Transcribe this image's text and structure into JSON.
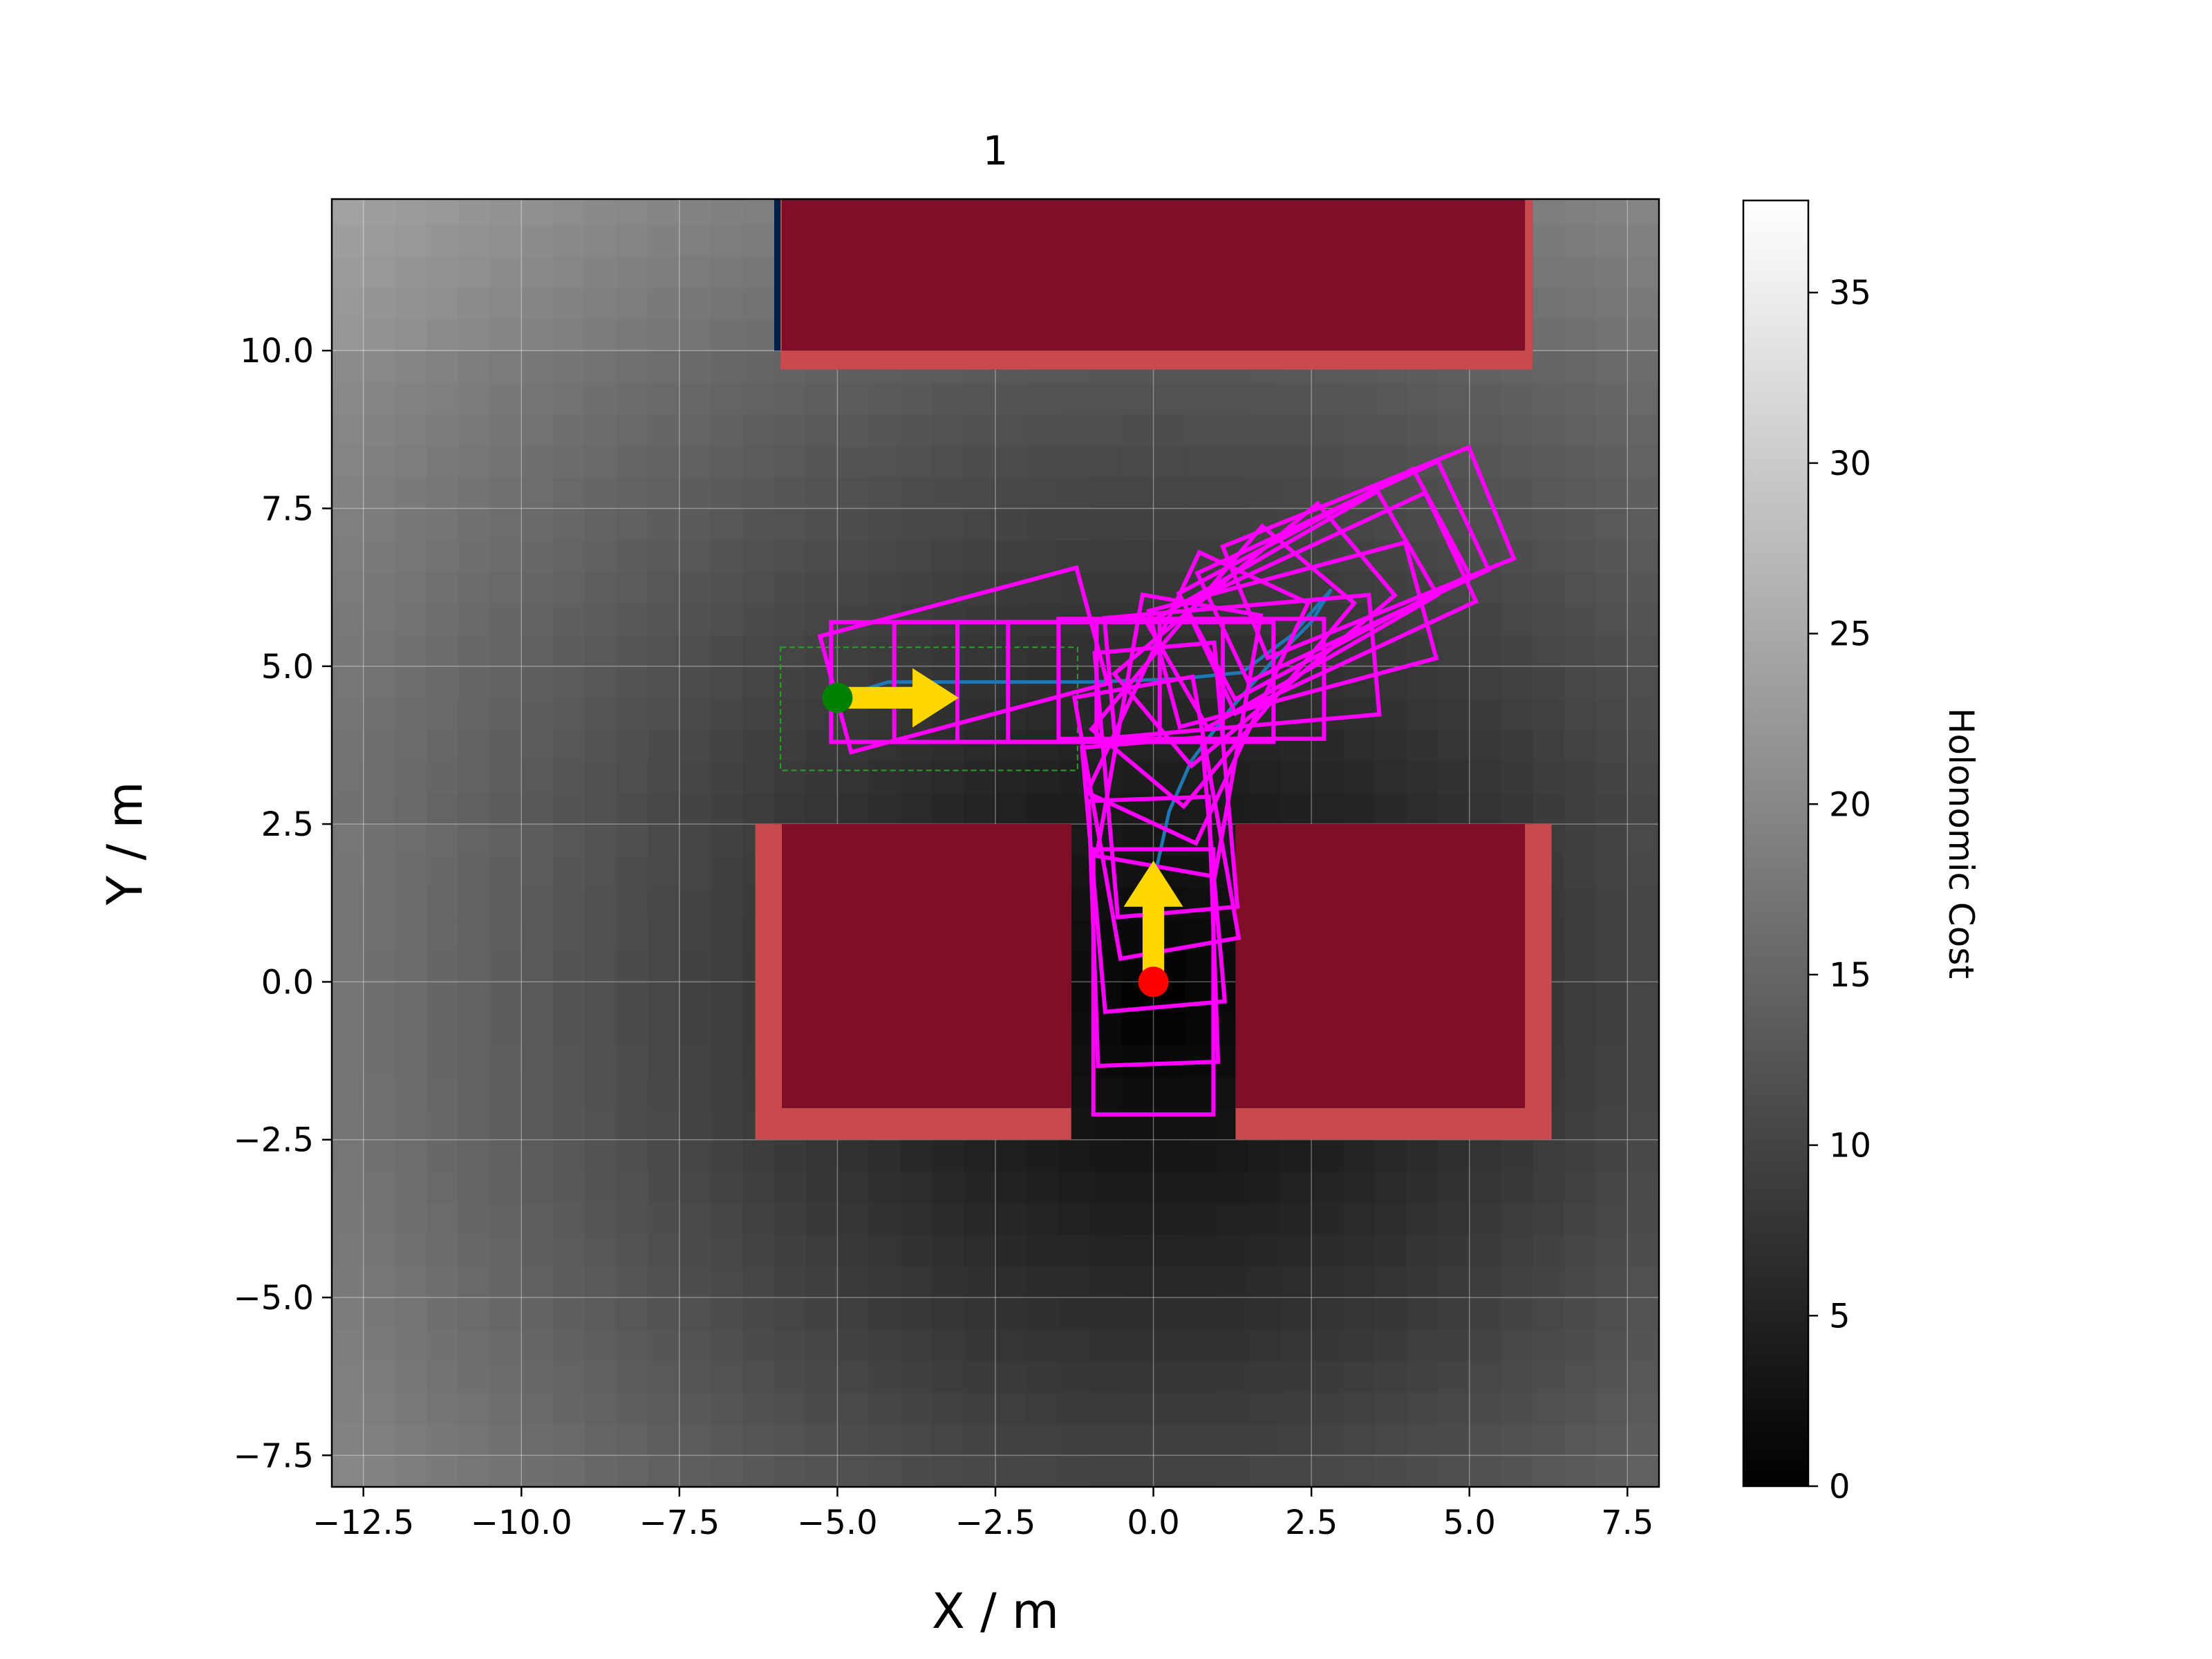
{
  "chart_data": {
    "type": "heatmap",
    "title": "1",
    "xlabel": "X / m",
    "ylabel": "Y / m",
    "xlim": [
      -13,
      8
    ],
    "ylim": [
      -8,
      12.4
    ],
    "xticks": [
      -12.5,
      -10.0,
      -7.5,
      -5.0,
      -2.5,
      0.0,
      2.5,
      5.0,
      7.5
    ],
    "yticks": [
      -7.5,
      -5.0,
      -2.5,
      0.0,
      2.5,
      5.0,
      7.5,
      10.0
    ],
    "xtick_labels": [
      "−12.5",
      "−10.0",
      "−7.5",
      "−5.0",
      "−2.5",
      "0.0",
      "2.5",
      "5.0",
      "7.5"
    ],
    "ytick_labels": [
      "−7.5",
      "−5.0",
      "−2.5",
      "0.0",
      "2.5",
      "5.0",
      "7.5",
      "10.0"
    ],
    "grid": true,
    "colorbar": {
      "label": "Holonomic Cost",
      "range": [
        0,
        37.7
      ],
      "ticks": [
        0,
        5,
        10,
        15,
        20,
        25,
        30,
        35
      ],
      "tick_labels": [
        "0",
        "5",
        "10",
        "15",
        "20",
        "25",
        "30",
        "35"
      ],
      "colormap": "gray"
    },
    "heatmap_source": [
      0.1,
      -0.3
    ],
    "heatmap_cell": 0.5,
    "obstacles": [
      {
        "x": [
          -6.0,
          6.0
        ],
        "y": [
          10.0,
          12.4
        ]
      },
      {
        "x": [
          -6.0,
          -1.3
        ],
        "y": [
          -2.0,
          2.5
        ]
      },
      {
        "x": [
          1.3,
          6.0
        ],
        "y": [
          -2.0,
          2.5
        ]
      }
    ],
    "inflated_obstacles": [
      {
        "x": [
          -5.9,
          6.0
        ],
        "y": [
          9.7,
          12.4
        ]
      },
      {
        "x": [
          -6.3,
          -1.3
        ],
        "y": [
          -2.5,
          2.5
        ]
      },
      {
        "x": [
          1.3,
          6.3
        ],
        "y": [
          -2.5,
          2.5
        ]
      }
    ],
    "goal_region": {
      "x": [
        -5.9,
        -1.2
      ],
      "y": [
        3.35,
        5.3
      ]
    },
    "start": {
      "x": 0.0,
      "y": 0.0,
      "heading_deg": 90
    },
    "goal": {
      "x": -5.0,
      "y": 4.5,
      "heading_deg": 0
    },
    "path": [
      [
        0.0,
        0.0
      ],
      [
        0.0,
        1.0
      ],
      [
        0.05,
        1.8
      ],
      [
        0.25,
        2.7
      ],
      [
        0.6,
        3.5
      ],
      [
        1.2,
        4.3
      ],
      [
        1.9,
        5.1
      ],
      [
        2.5,
        5.7
      ],
      [
        2.8,
        6.2
      ],
      [
        2.2,
        5.5
      ],
      [
        1.4,
        4.9
      ],
      [
        0.4,
        4.8
      ],
      [
        -1.0,
        4.75
      ],
      [
        -2.5,
        4.75
      ],
      [
        -4.2,
        4.75
      ],
      [
        -5.0,
        4.5
      ]
    ],
    "vehicle_poses": [
      {
        "x": 0.0,
        "y": 0.0,
        "theta_deg": 90
      },
      {
        "x": 0.0,
        "y": 0.8,
        "theta_deg": 92
      },
      {
        "x": 0.0,
        "y": 1.7,
        "theta_deg": 95
      },
      {
        "x": 0.05,
        "y": 2.6,
        "theta_deg": 100
      },
      {
        "x": 0.2,
        "y": 3.2,
        "theta_deg": 95
      },
      {
        "x": 0.4,
        "y": 3.9,
        "theta_deg": 80
      },
      {
        "x": 0.7,
        "y": 4.5,
        "theta_deg": 65
      },
      {
        "x": 1.1,
        "y": 5.0,
        "theta_deg": 50
      },
      {
        "x": 1.6,
        "y": 5.5,
        "theta_deg": 40
      },
      {
        "x": 2.2,
        "y": 5.9,
        "theta_deg": 30
      },
      {
        "x": 2.7,
        "y": 6.3,
        "theta_deg": 28
      },
      {
        "x": 3.0,
        "y": 6.5,
        "theta_deg": 25
      },
      {
        "x": 3.4,
        "y": 6.8,
        "theta_deg": 22
      },
      {
        "x": 2.8,
        "y": 6.0,
        "theta_deg": 25
      },
      {
        "x": 2.2,
        "y": 5.5,
        "theta_deg": 15
      },
      {
        "x": 1.4,
        "y": 5.0,
        "theta_deg": 5
      },
      {
        "x": 0.6,
        "y": 4.8,
        "theta_deg": 0
      },
      {
        "x": -0.2,
        "y": 4.75,
        "theta_deg": 0
      },
      {
        "x": -1.0,
        "y": 4.75,
        "theta_deg": 0
      },
      {
        "x": -2.0,
        "y": 4.75,
        "theta_deg": 0
      },
      {
        "x": -3.0,
        "y": 4.75,
        "theta_deg": 0
      },
      {
        "x": -3.0,
        "y": 5.1,
        "theta_deg": 15
      }
    ],
    "vehicle_size": {
      "length": 4.2,
      "width": 1.9
    },
    "colors": {
      "obstacle": "#7f0f28",
      "obstacle_inflated": "#c94a4c",
      "obstacle_edge": "#00204c",
      "vehicle": "#ff00ff",
      "path": "#1f77b4",
      "arrow": "#ffd700",
      "start": "#ff0000",
      "goal": "#008000",
      "goal_region": "#2ca02c"
    }
  }
}
